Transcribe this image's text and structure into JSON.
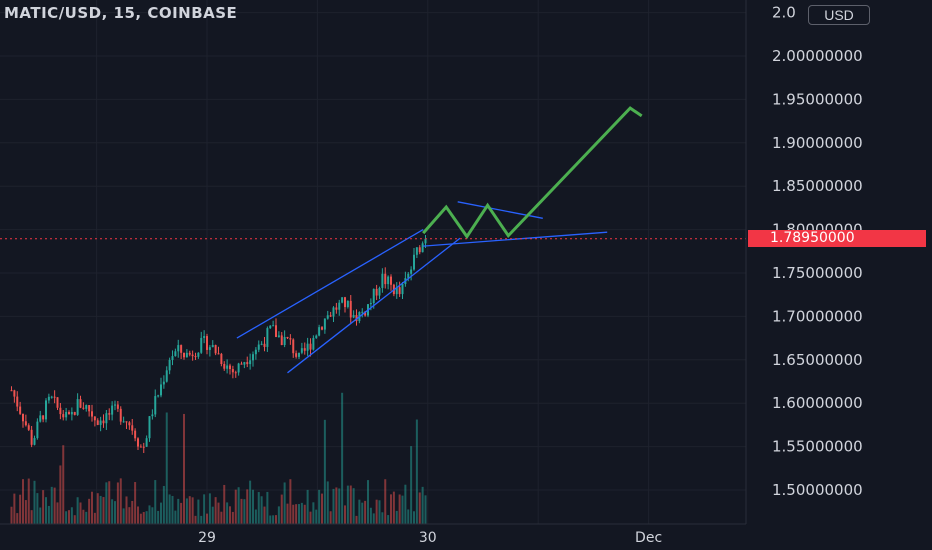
{
  "header": {
    "title": "MATIC/USD, 15, COINBASE",
    "currency_label": "USD"
  },
  "price_tag": "1.78950000",
  "colors": {
    "background": "#131722",
    "grid": "#1e222d",
    "text": "#d1d4dc",
    "up": "#26a69a",
    "down": "#ef5350",
    "drawing_blue": "#2962ff",
    "forecast_green": "#4caf50",
    "price_line": "#f23645"
  },
  "chart_data": {
    "type": "candlestick",
    "y_axis": {
      "min": 1.455,
      "max": 2.07,
      "ticks": [
        "2.00000000",
        "1.95000000",
        "1.90000000",
        "1.85000000",
        "1.80000000",
        "1.75000000",
        "1.70000000",
        "1.65000000",
        "1.60000000",
        "1.55000000",
        "1.50000000"
      ],
      "top_partial_label": "2.0"
    },
    "x_axis": {
      "ticks": [
        {
          "label": "29",
          "x": 0
        },
        {
          "label": "30",
          "x": 96
        },
        {
          "label": "Dec",
          "x": 192
        }
      ],
      "range": [
        -85,
        224
      ]
    },
    "last_price": 1.7895,
    "path_close": [
      [
        -85,
        1.615
      ],
      [
        -80,
        1.585
      ],
      [
        -76,
        1.555
      ],
      [
        -72,
        1.585
      ],
      [
        -68,
        1.605
      ],
      [
        -64,
        1.59
      ],
      [
        -60,
        1.58
      ],
      [
        -56,
        1.6
      ],
      [
        -52,
        1.595
      ],
      [
        -48,
        1.58
      ],
      [
        -44,
        1.585
      ],
      [
        -40,
        1.59
      ],
      [
        -36,
        1.585
      ],
      [
        -32,
        1.57
      ],
      [
        -28,
        1.545
      ],
      [
        -24,
        1.59
      ],
      [
        -20,
        1.62
      ],
      [
        -16,
        1.655
      ],
      [
        -12,
        1.66
      ],
      [
        -8,
        1.655
      ],
      [
        -4,
        1.665
      ],
      [
        0,
        1.67
      ],
      [
        4,
        1.66
      ],
      [
        8,
        1.645
      ],
      [
        12,
        1.635
      ],
      [
        16,
        1.65
      ],
      [
        20,
        1.66
      ],
      [
        24,
        1.67
      ],
      [
        28,
        1.685
      ],
      [
        32,
        1.675
      ],
      [
        36,
        1.67
      ],
      [
        40,
        1.65
      ],
      [
        44,
        1.665
      ],
      [
        48,
        1.685
      ],
      [
        52,
        1.7
      ],
      [
        56,
        1.71
      ],
      [
        60,
        1.715
      ],
      [
        64,
        1.7
      ],
      [
        68,
        1.705
      ],
      [
        72,
        1.72
      ],
      [
        76,
        1.745
      ],
      [
        80,
        1.735
      ],
      [
        84,
        1.725
      ],
      [
        88,
        1.75
      ],
      [
        92,
        1.78
      ],
      [
        96,
        1.79
      ]
    ],
    "drawings": {
      "channel_upper": [
        [
          13,
          1.675
        ],
        [
          94,
          1.8
        ]
      ],
      "channel_lower": [
        [
          35,
          1.635
        ],
        [
          110,
          1.79
        ]
      ],
      "triangle_upper": [
        [
          109,
          1.832
        ],
        [
          146,
          1.813
        ]
      ],
      "triangle_lower": [
        [
          94,
          1.781
        ],
        [
          174,
          1.797
        ]
      ],
      "forecast_path": [
        [
          94,
          1.796
        ],
        [
          104,
          1.826
        ],
        [
          113,
          1.792
        ],
        [
          122,
          1.828
        ],
        [
          131,
          1.793
        ],
        [
          184,
          1.94
        ],
        [
          189,
          1.931
        ]
      ]
    }
  }
}
